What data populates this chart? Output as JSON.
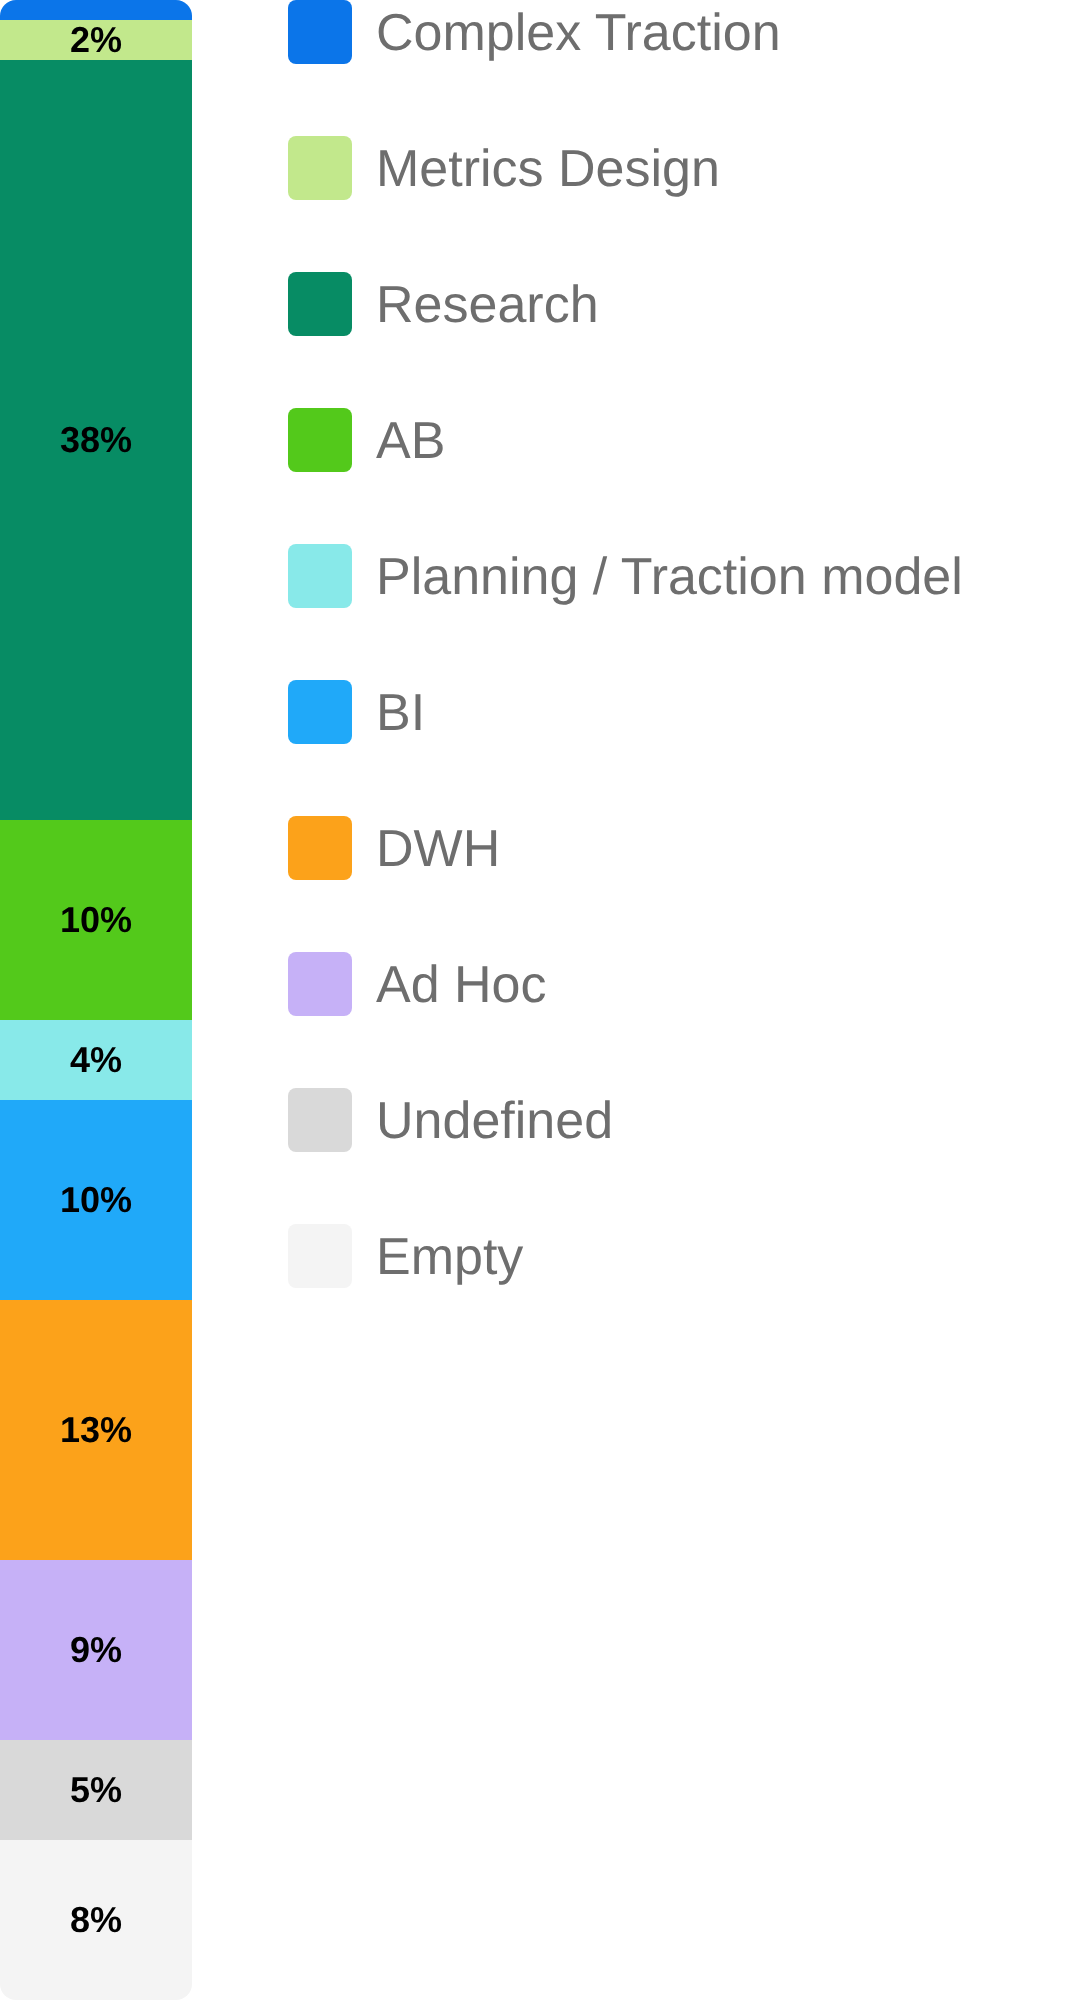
{
  "chart_data": {
    "type": "bar",
    "stacked": true,
    "categories": [
      null
    ],
    "ylim": [
      0,
      100
    ],
    "legend": "right",
    "series": [
      {
        "name": "Empty",
        "color": "#f4f4f4",
        "values": [
          8
        ],
        "value_labels": [
          "8%"
        ]
      },
      {
        "name": "Undefined",
        "color": "#d9d9d9",
        "values": [
          5
        ],
        "value_labels": [
          "5%"
        ]
      },
      {
        "name": "Ad Hoc",
        "color": "#c6b1f7",
        "values": [
          9
        ],
        "value_labels": [
          "9%"
        ]
      },
      {
        "name": "DWH",
        "color": "#fca21a",
        "values": [
          13
        ],
        "value_labels": [
          "13%"
        ]
      },
      {
        "name": "BI",
        "color": "#20a9f9",
        "values": [
          10
        ],
        "value_labels": [
          "10%"
        ]
      },
      {
        "name": "Planning / Traction model",
        "color": "#88e9e9",
        "values": [
          4
        ],
        "value_labels": [
          "4%"
        ]
      },
      {
        "name": "AB",
        "color": "#53c91b",
        "values": [
          10
        ],
        "value_labels": [
          "10%"
        ]
      },
      {
        "name": "Research",
        "color": "#078c64",
        "values": [
          38
        ],
        "value_labels": [
          "38%"
        ]
      },
      {
        "name": "Metrics Design",
        "color": "#c2e88c",
        "values": [
          2
        ],
        "value_labels": [
          "2%"
        ]
      },
      {
        "name": "Complex Traction",
        "color": "#0b75e9",
        "values": [
          1
        ],
        "value_labels": [
          null
        ]
      }
    ]
  }
}
